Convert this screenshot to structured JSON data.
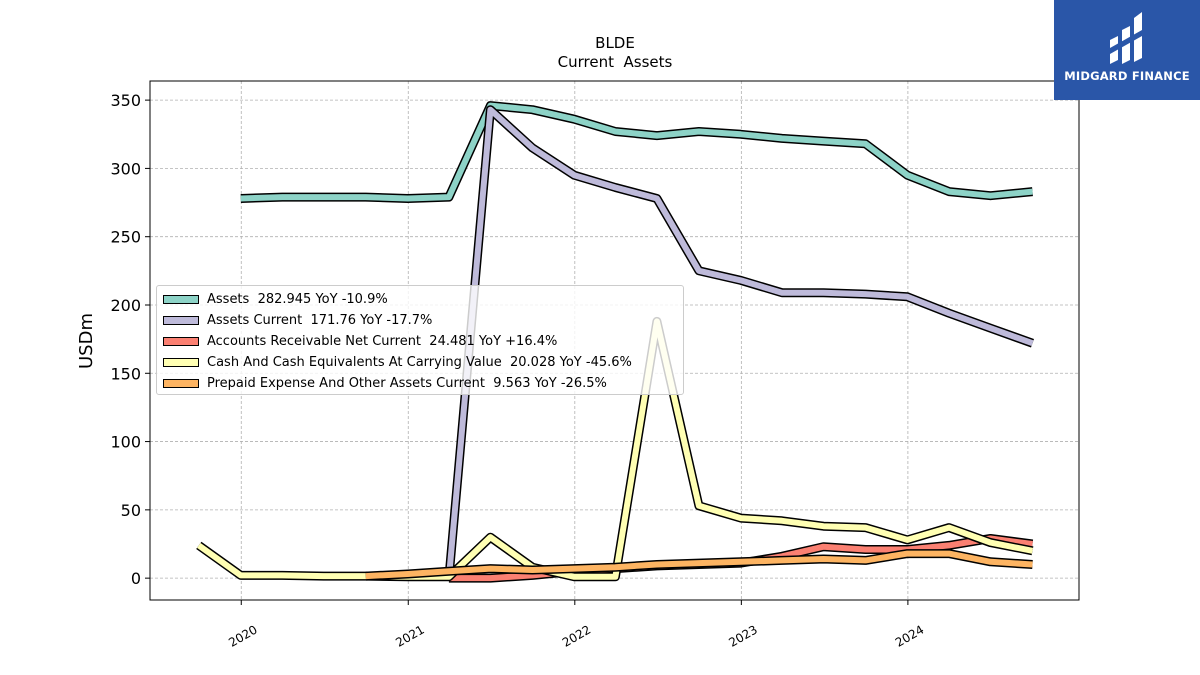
{
  "logo": {
    "text": "MIDGARD FINANCE"
  },
  "chart_data": {
    "type": "line",
    "title": "BLDE",
    "subtitle": "Current  Assets",
    "ylabel": "USDm",
    "xlabel": "",
    "xlim": [
      "2019-06-15",
      "2025-01-10"
    ],
    "ylim": [
      -16,
      364
    ],
    "x_ticks": [
      "2020",
      "2021",
      "2022",
      "2023",
      "2024"
    ],
    "y_ticks": [
      0,
      50,
      100,
      150,
      200,
      250,
      300,
      350
    ],
    "grid": true,
    "legend_position": "center-left",
    "series": [
      {
        "name": "Assets  282.945 YoY -10.9%",
        "color": "#8dd3c7",
        "points": [
          [
            "2019-12-31",
            278
          ],
          [
            "2020-03-31",
            279
          ],
          [
            "2020-06-30",
            279
          ],
          [
            "2020-09-30",
            279
          ],
          [
            "2020-12-31",
            278
          ],
          [
            "2021-03-31",
            279
          ],
          [
            "2021-06-30",
            346
          ],
          [
            "2021-09-30",
            343
          ],
          [
            "2021-12-31",
            336
          ],
          [
            "2022-03-31",
            327
          ],
          [
            "2022-06-30",
            324
          ],
          [
            "2022-09-30",
            327
          ],
          [
            "2022-12-31",
            325
          ],
          [
            "2023-03-31",
            322
          ],
          [
            "2023-06-30",
            320
          ],
          [
            "2023-09-30",
            318
          ],
          [
            "2023-12-31",
            295
          ],
          [
            "2024-03-31",
            283
          ],
          [
            "2024-06-30",
            280
          ],
          [
            "2024-09-30",
            283
          ]
        ]
      },
      {
        "name": "Assets Current  171.76 YoY -17.7%",
        "color": "#bebada",
        "points": [
          [
            "2021-03-31",
            0
          ],
          [
            "2021-06-30",
            343
          ],
          [
            "2021-09-30",
            315
          ],
          [
            "2021-12-31",
            295
          ],
          [
            "2022-03-31",
            286
          ],
          [
            "2022-06-30",
            278
          ],
          [
            "2022-09-30",
            225
          ],
          [
            "2022-12-31",
            218
          ],
          [
            "2023-03-31",
            209
          ],
          [
            "2023-06-30",
            209
          ],
          [
            "2023-09-30",
            208
          ],
          [
            "2023-12-31",
            206
          ],
          [
            "2024-03-31",
            194
          ],
          [
            "2024-06-30",
            183
          ],
          [
            "2024-09-30",
            172
          ]
        ]
      },
      {
        "name": "Accounts Receivable Net Current  24.481 YoY +16.4%",
        "color": "#fb8072",
        "points": [
          [
            "2021-03-31",
            0
          ],
          [
            "2021-06-30",
            0
          ],
          [
            "2021-09-30",
            2
          ],
          [
            "2021-12-31",
            5
          ],
          [
            "2022-03-31",
            7
          ],
          [
            "2022-06-30",
            9
          ],
          [
            "2022-09-30",
            10
          ],
          [
            "2022-12-31",
            11
          ],
          [
            "2023-03-31",
            16
          ],
          [
            "2023-06-30",
            23
          ],
          [
            "2023-09-30",
            21
          ],
          [
            "2023-12-31",
            21
          ],
          [
            "2024-03-31",
            24
          ],
          [
            "2024-06-30",
            29
          ],
          [
            "2024-09-30",
            25
          ]
        ]
      },
      {
        "name": "Cash And Cash Equivalents At Carrying Value  20.028 YoY -45.6%",
        "color": "#ffffb3",
        "points": [
          [
            "2019-09-30",
            24
          ],
          [
            "2019-12-31",
            2
          ],
          [
            "2020-03-31",
            2
          ],
          [
            "2020-06-30",
            1.5
          ],
          [
            "2020-09-30",
            1.5
          ],
          [
            "2020-12-31",
            1
          ],
          [
            "2021-03-31",
            1
          ],
          [
            "2021-06-30",
            30
          ],
          [
            "2021-09-30",
            8
          ],
          [
            "2021-12-31",
            1
          ],
          [
            "2022-03-31",
            1
          ],
          [
            "2022-06-30",
            188
          ],
          [
            "2022-09-30",
            53
          ],
          [
            "2022-12-31",
            44
          ],
          [
            "2023-03-31",
            42
          ],
          [
            "2023-06-30",
            38
          ],
          [
            "2023-09-30",
            37
          ],
          [
            "2023-12-31",
            28
          ],
          [
            "2024-03-31",
            37
          ],
          [
            "2024-06-30",
            26
          ],
          [
            "2024-09-30",
            20
          ]
        ]
      },
      {
        "name": "Prepaid Expense And Other Assets Current  9.563 YoY -26.5%",
        "color": "#fdb462",
        "points": [
          [
            "2020-09-30",
            1.5
          ],
          [
            "2020-12-31",
            3
          ],
          [
            "2021-03-31",
            5
          ],
          [
            "2021-06-30",
            7
          ],
          [
            "2021-09-30",
            6
          ],
          [
            "2021-12-31",
            7
          ],
          [
            "2022-03-31",
            8
          ],
          [
            "2022-06-30",
            10
          ],
          [
            "2022-09-30",
            11
          ],
          [
            "2022-12-31",
            12
          ],
          [
            "2023-03-31",
            13
          ],
          [
            "2023-06-30",
            14
          ],
          [
            "2023-09-30",
            13
          ],
          [
            "2023-12-31",
            18
          ],
          [
            "2024-03-31",
            18
          ],
          [
            "2024-06-30",
            12
          ],
          [
            "2024-09-30",
            10
          ]
        ]
      }
    ]
  }
}
